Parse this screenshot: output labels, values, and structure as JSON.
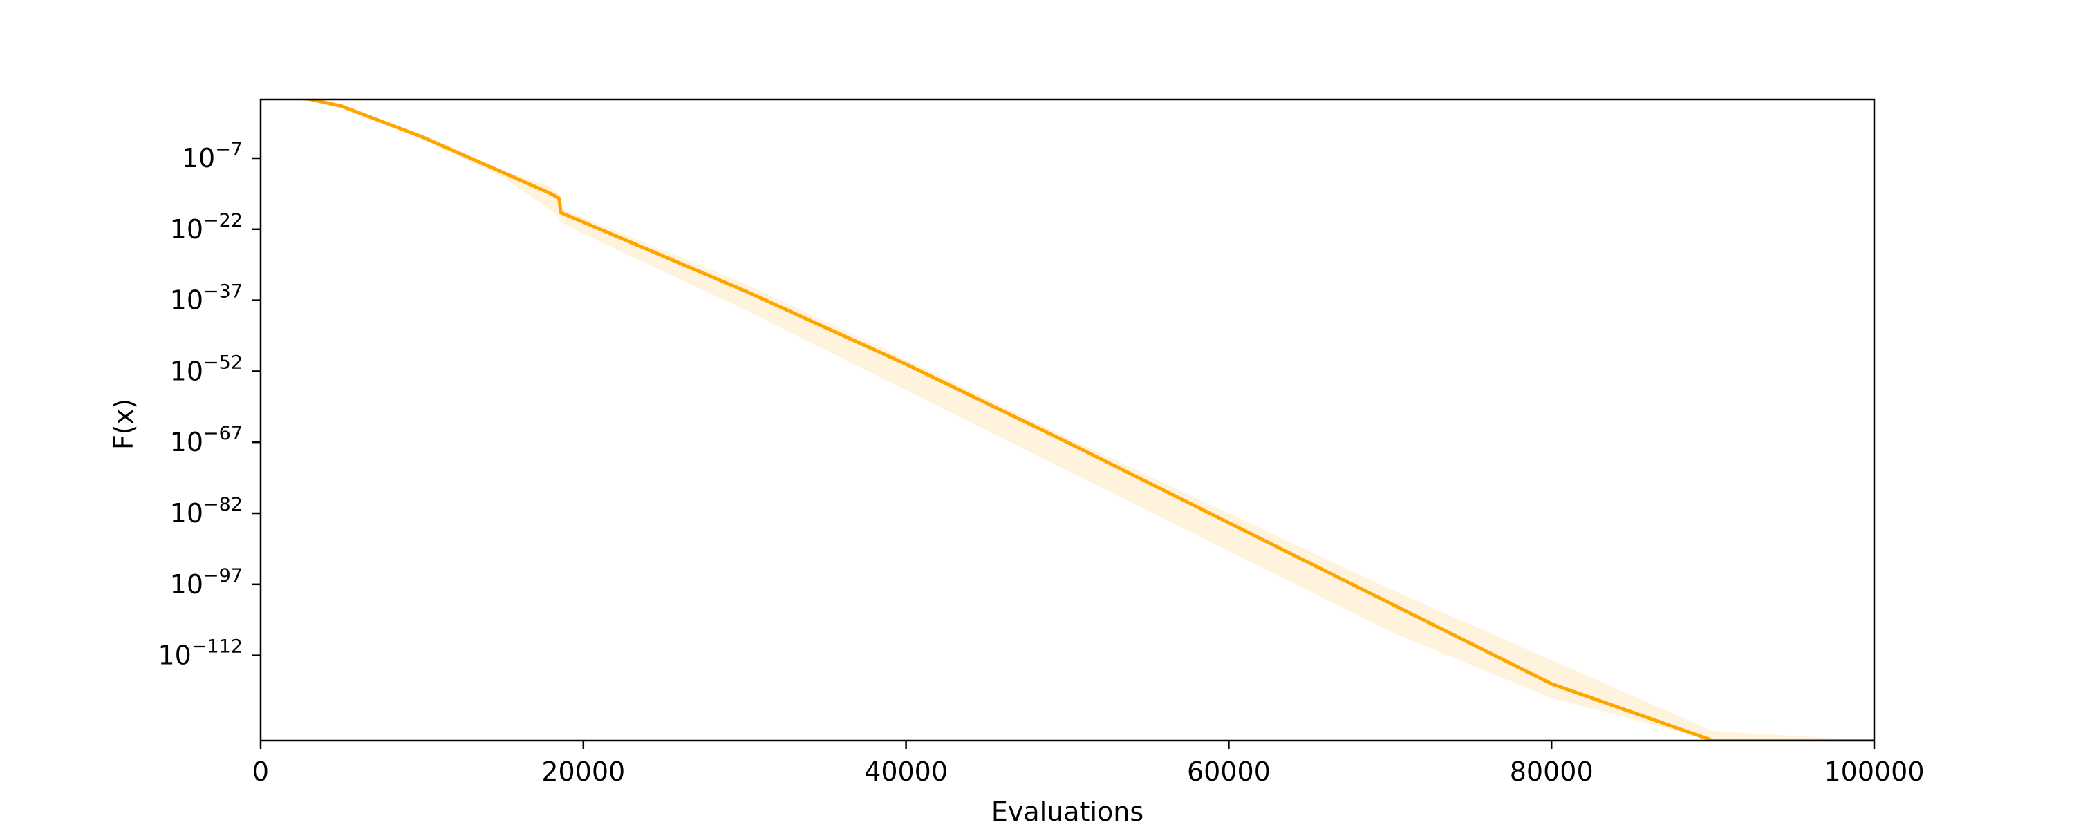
{
  "chart_data": {
    "type": "line",
    "title": "",
    "xlabel": "Evaluations",
    "ylabel": "F(x)",
    "xlim": [
      0,
      100000
    ],
    "ylim_log10": [
      -130,
      5.4
    ],
    "yscale": "log",
    "grid": false,
    "legend": "none",
    "x_ticks": [
      {
        "value": 0,
        "label": "0"
      },
      {
        "value": 20000,
        "label": "20000"
      },
      {
        "value": 40000,
        "label": "40000"
      },
      {
        "value": 60000,
        "label": "60000"
      },
      {
        "value": 80000,
        "label": "80000"
      },
      {
        "value": 100000,
        "label": "100000"
      }
    ],
    "y_ticks": [
      {
        "log10": -7,
        "base": "10",
        "exp": "−7"
      },
      {
        "log10": -22,
        "base": "10",
        "exp": "−22"
      },
      {
        "log10": -37,
        "base": "10",
        "exp": "−37"
      },
      {
        "log10": -52,
        "base": "10",
        "exp": "−52"
      },
      {
        "log10": -67,
        "base": "10",
        "exp": "−67"
      },
      {
        "log10": -82,
        "base": "10",
        "exp": "−82"
      },
      {
        "log10": -97,
        "base": "10",
        "exp": "−97"
      },
      {
        "log10": -112,
        "base": "10",
        "exp": "−112"
      }
    ],
    "series": [
      {
        "color": "#ffa500",
        "band_color": "#ffa500",
        "x": [
          0,
          1000,
          3000,
          5000,
          10000,
          15000,
          18000,
          18500,
          18600,
          20000,
          30000,
          40000,
          50000,
          60000,
          70000,
          80000,
          90000,
          100000
        ],
        "log10_y": [
          7.0,
          6.0,
          5.5,
          4.0,
          -2.5,
          -10.0,
          -14.5,
          -15.5,
          -18.5,
          -20.5,
          -35.0,
          -50.5,
          -67.0,
          -84.0,
          -101.0,
          -118.0,
          -132.0,
          -147.5
        ],
        "log10_lower": [
          7.0,
          6.0,
          5.5,
          4.0,
          -3.0,
          -11.0,
          -18.0,
          -19.5,
          -20.5,
          -23.0,
          -39.0,
          -56.0,
          -73.0,
          -90.0,
          -107.0,
          -121.0,
          -137.0,
          -152.0
        ],
        "log10_upper": [
          7.0,
          6.0,
          5.5,
          4.0,
          -2.0,
          -9.5,
          -13.0,
          -14.5,
          -17.5,
          -19.5,
          -33.5,
          -49.5,
          -66.0,
          -82.0,
          -98.0,
          -113.0,
          -128.0,
          -143.0
        ]
      }
    ]
  }
}
